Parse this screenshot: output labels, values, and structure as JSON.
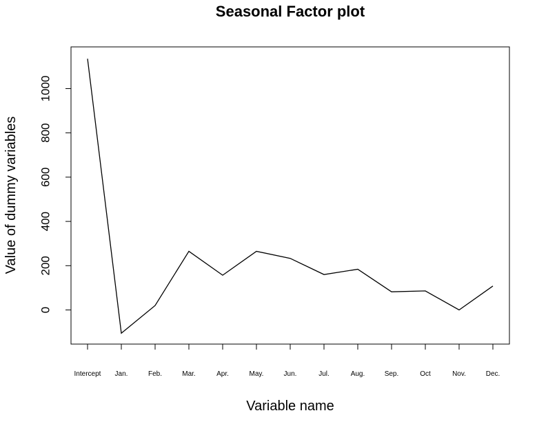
{
  "chart_data": {
    "type": "line",
    "title": "Seasonal Factor plot",
    "xlabel": "Variable name",
    "ylabel": "Value of dummy variables",
    "categories": [
      "Intercept",
      "Jan.",
      "Feb.",
      "Mar.",
      "Apr.",
      "May.",
      "Jun.",
      "Jul.",
      "Aug.",
      "Sep.",
      "Oct",
      "Nov.",
      "Dec."
    ],
    "values": [
      1135,
      -105,
      20,
      265,
      157,
      265,
      233,
      160,
      184,
      82,
      86,
      0,
      108
    ],
    "yticks": [
      0,
      200,
      400,
      600,
      800,
      1000
    ],
    "ylim": [
      -150,
      1190
    ],
    "grid": false,
    "line_color": "#000000"
  }
}
